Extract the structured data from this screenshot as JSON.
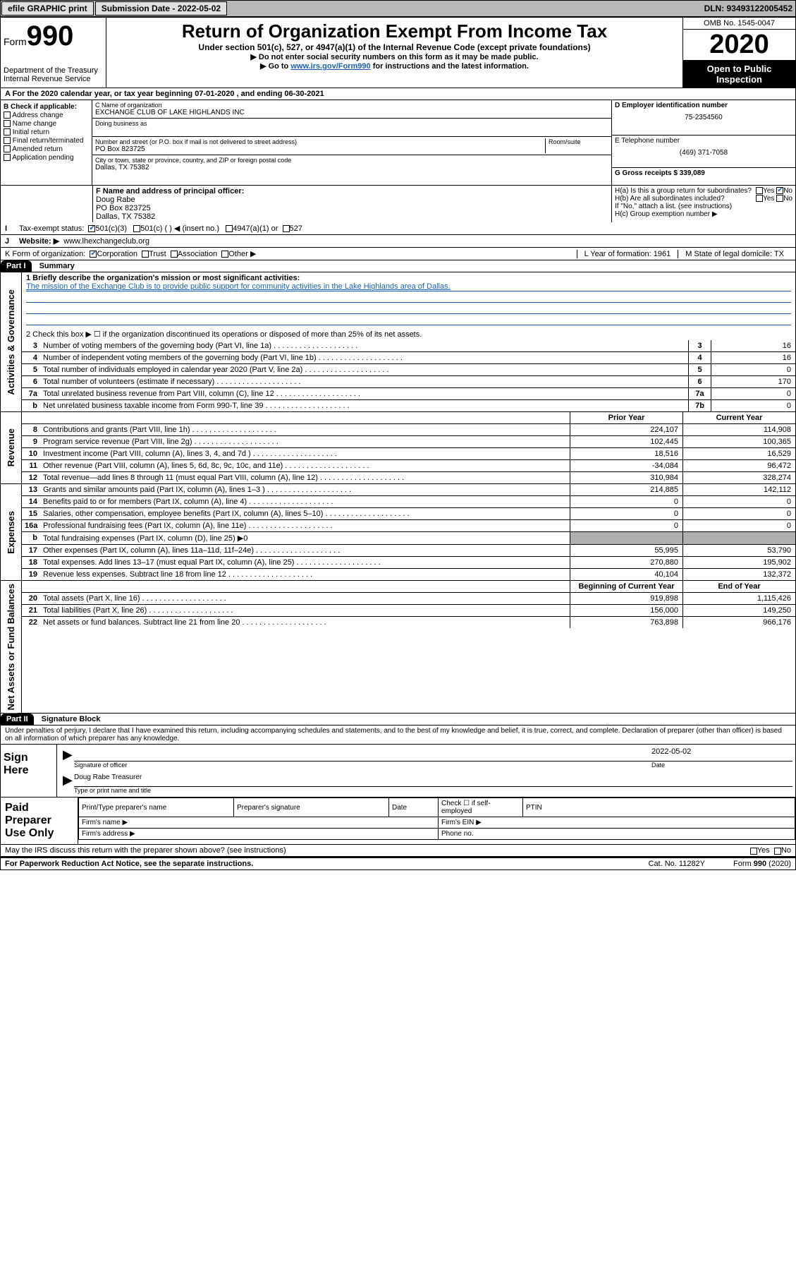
{
  "topbar": {
    "efile": "efile GRAPHIC print",
    "submission_label": "Submission Date - 2022-05-02",
    "dln_label": "DLN: 93493122005452"
  },
  "header": {
    "form_label": "Form",
    "form_number": "990",
    "dept": "Department of the Treasury",
    "irs": "Internal Revenue Service",
    "title": "Return of Organization Exempt From Income Tax",
    "subtitle": "Under section 501(c), 527, or 4947(a)(1) of the Internal Revenue Code (except private foundations)",
    "instr1": "▶ Do not enter social security numbers on this form as it may be made public.",
    "instr2_pre": "▶ Go to ",
    "instr2_link": "www.irs.gov/Form990",
    "instr2_post": " for instructions and the latest information.",
    "omb": "OMB No. 1545-0047",
    "year": "2020",
    "open_public": "Open to Public Inspection"
  },
  "rowA": "A For the 2020 calendar year, or tax year beginning 07-01-2020     , and ending 06-30-2021",
  "boxB": {
    "label": "B Check if applicable:",
    "opts": [
      "Address change",
      "Name change",
      "Initial return",
      "Final return/terminated",
      "Amended return",
      "Application pending"
    ]
  },
  "boxC": {
    "name_lbl": "C Name of organization",
    "name_val": "EXCHANGE CLUB OF LAKE HIGHLANDS INC",
    "dba_lbl": "Doing business as",
    "street_lbl": "Number and street (or P.O. box if mail is not delivered to street address)",
    "room_lbl": "Room/suite",
    "street_val": "PO Box 823725",
    "city_lbl": "City or town, state or province, country, and ZIP or foreign postal code",
    "city_val": "Dallas, TX  75382"
  },
  "boxD": {
    "lbl": "D Employer identification number",
    "val": "75-2354560"
  },
  "boxE": {
    "lbl": "E Telephone number",
    "val": "(469) 371-7058"
  },
  "boxG": {
    "lbl": "G Gross receipts $ 339,089"
  },
  "boxF": {
    "lbl": "F Name and address of principal officer:",
    "name": "Doug Rabe",
    "addr1": "PO Box 823725",
    "addr2": "Dallas, TX  75382"
  },
  "boxH": {
    "a_lbl": "H(a)  Is this a group return for subordinates?",
    "b_lbl": "H(b)  Are all subordinates included?",
    "note": "If \"No,\" attach a list. (see instructions)",
    "c_lbl": "H(c)  Group exemption number ▶"
  },
  "taxStatus": {
    "lbl": "Tax-exempt status:",
    "o1": "501(c)(3)",
    "o2": "501(c) (   ) ◀ (insert no.)",
    "o3": "4947(a)(1) or",
    "o4": "527"
  },
  "website": {
    "lbl": "Website: ▶",
    "val": "www.lhexchangeclub.org"
  },
  "rowK": {
    "lbl": "K Form of organization:",
    "opts": [
      "Corporation",
      "Trust",
      "Association",
      "Other ▶"
    ]
  },
  "rowL": {
    "lbl": "L Year of formation: 1961"
  },
  "rowM": {
    "lbl": "M State of legal domicile: TX"
  },
  "part1": {
    "hdr": "Part I",
    "title": "Summary",
    "l1_lbl": "1  Briefly describe the organization's mission or most significant activities:",
    "l1_txt": "The mission of the Exchange Club is to provide public support for community activities in the Lake Highlands area of Dallas.",
    "l2": "2    Check this box ▶ ☐  if the organization discontinued its operations or disposed of more than 25% of its net assets.",
    "rows_ag": [
      {
        "n": "3",
        "t": "Number of voting members of the governing body (Part VI, line 1a)",
        "b": "3",
        "v": "16"
      },
      {
        "n": "4",
        "t": "Number of independent voting members of the governing body (Part VI, line 1b)",
        "b": "4",
        "v": "16"
      },
      {
        "n": "5",
        "t": "Total number of individuals employed in calendar year 2020 (Part V, line 2a)",
        "b": "5",
        "v": "0"
      },
      {
        "n": "6",
        "t": "Total number of volunteers (estimate if necessary)",
        "b": "6",
        "v": "170"
      },
      {
        "n": "7a",
        "t": "Total unrelated business revenue from Part VIII, column (C), line 12",
        "b": "7a",
        "v": "0"
      },
      {
        "n": "b",
        "t": "Net unrelated business taxable income from Form 990-T, line 39",
        "b": "7b",
        "v": "0"
      }
    ],
    "col_prior": "Prior Year",
    "col_current": "Current Year",
    "rows_rev": [
      {
        "n": "8",
        "t": "Contributions and grants (Part VIII, line 1h)",
        "p": "224,107",
        "c": "114,908"
      },
      {
        "n": "9",
        "t": "Program service revenue (Part VIII, line 2g)",
        "p": "102,445",
        "c": "100,365"
      },
      {
        "n": "10",
        "t": "Investment income (Part VIII, column (A), lines 3, 4, and 7d )",
        "p": "18,516",
        "c": "16,529"
      },
      {
        "n": "11",
        "t": "Other revenue (Part VIII, column (A), lines 5, 6d, 8c, 9c, 10c, and 11e)",
        "p": "-34,084",
        "c": "96,472"
      },
      {
        "n": "12",
        "t": "Total revenue—add lines 8 through 11 (must equal Part VIII, column (A), line 12)",
        "p": "310,984",
        "c": "328,274"
      }
    ],
    "rows_exp": [
      {
        "n": "13",
        "t": "Grants and similar amounts paid (Part IX, column (A), lines 1–3 )",
        "p": "214,885",
        "c": "142,112"
      },
      {
        "n": "14",
        "t": "Benefits paid to or for members (Part IX, column (A), line 4)",
        "p": "0",
        "c": "0"
      },
      {
        "n": "15",
        "t": "Salaries, other compensation, employee benefits (Part IX, column (A), lines 5–10)",
        "p": "0",
        "c": "0"
      },
      {
        "n": "16a",
        "t": "Professional fundraising fees (Part IX, column (A), line 11e)",
        "p": "0",
        "c": "0"
      },
      {
        "n": "b",
        "t": "Total fundraising expenses (Part IX, column (D), line 25) ▶0",
        "p": "",
        "c": "",
        "shaded": true
      },
      {
        "n": "17",
        "t": "Other expenses (Part IX, column (A), lines 11a–11d, 11f–24e)",
        "p": "55,995",
        "c": "53,790"
      },
      {
        "n": "18",
        "t": "Total expenses. Add lines 13–17 (must equal Part IX, column (A), line 25)",
        "p": "270,880",
        "c": "195,902"
      },
      {
        "n": "19",
        "t": "Revenue less expenses. Subtract line 18 from line 12",
        "p": "40,104",
        "c": "132,372"
      }
    ],
    "col_begin": "Beginning of Current Year",
    "col_end": "End of Year",
    "rows_na": [
      {
        "n": "20",
        "t": "Total assets (Part X, line 16)",
        "p": "919,898",
        "c": "1,115,426"
      },
      {
        "n": "21",
        "t": "Total liabilities (Part X, line 26)",
        "p": "156,000",
        "c": "149,250"
      },
      {
        "n": "22",
        "t": "Net assets or fund balances. Subtract line 21 from line 20",
        "p": "763,898",
        "c": "966,176"
      }
    ],
    "vlabels": {
      "ag": "Activities & Governance",
      "rev": "Revenue",
      "exp": "Expenses",
      "na": "Net Assets or Fund Balances"
    }
  },
  "part2": {
    "hdr": "Part II",
    "title": "Signature Block",
    "decl": "Under penalties of perjury, I declare that I have examined this return, including accompanying schedules and statements, and to the best of my knowledge and belief, it is true, correct, and complete. Declaration of preparer (other than officer) is based on all information of which preparer has any knowledge.",
    "sign_here": "Sign Here",
    "sig_officer": "Signature of officer",
    "sig_date": "2022-05-02",
    "date_lbl": "Date",
    "officer_name": "Doug Rabe  Treasurer",
    "type_lbl": "Type or print name and title",
    "paid_prep": "Paid Preparer Use Only",
    "pt_name": "Print/Type preparer's name",
    "pt_sig": "Preparer's signature",
    "pt_date": "Date",
    "pt_check": "Check ☐ if self-employed",
    "pt_ptin": "PTIN",
    "firm_name": "Firm's name    ▶",
    "firm_ein": "Firm's EIN ▶",
    "firm_addr": "Firm's address ▶",
    "phone": "Phone no."
  },
  "footer": {
    "discuss": "May the IRS discuss this return with the preparer shown above? (see instructions)",
    "paperwork": "For Paperwork Reduction Act Notice, see the separate instructions.",
    "catno": "Cat. No. 11282Y",
    "formno": "Form 990 (2020)"
  },
  "yesno": {
    "yes": "Yes",
    "no": "No"
  }
}
